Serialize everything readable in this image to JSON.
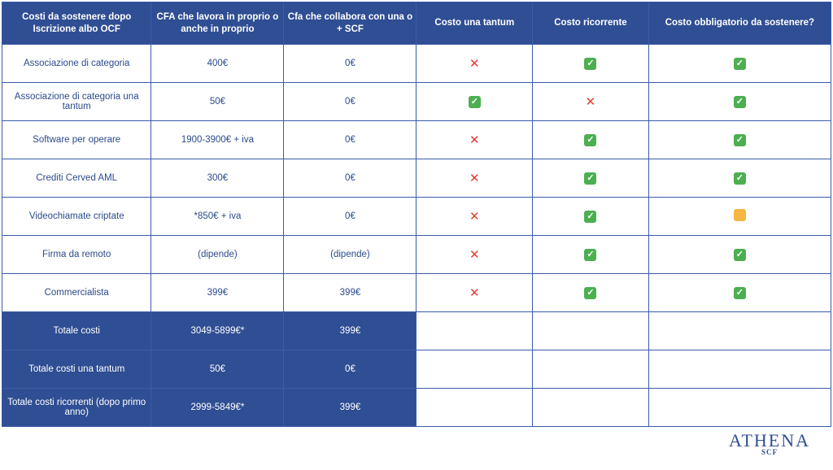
{
  "headers": [
    "Costi da sostenere dopo Iscrizione albo OCF",
    "CFA che lavora in proprio o anche in proprio",
    "Cfa che collabora con una o + SCF",
    "Costo una tantum",
    "Costo ricorrente",
    "Costo obbligatorio da sostenere?"
  ],
  "rows": [
    {
      "label": "Associazione di categoria",
      "own": "400€",
      "scf": "0€",
      "una": "cross",
      "rec": "check",
      "obl": "check"
    },
    {
      "label": "Associazione di categoria una tantum",
      "own": "50€",
      "scf": "0€",
      "una": "check",
      "rec": "cross",
      "obl": "check"
    },
    {
      "label": "Software per operare",
      "own": "1900-3900€ + iva",
      "scf": "0€",
      "una": "cross",
      "rec": "check",
      "obl": "check"
    },
    {
      "label": "Crediti Cerved AML",
      "own": "300€",
      "scf": "0€",
      "una": "cross",
      "rec": "check",
      "obl": "check"
    },
    {
      "label": "Videochiamate criptate",
      "own": "*850€ + iva",
      "scf": "0€",
      "una": "cross",
      "rec": "check",
      "obl": "maybe"
    },
    {
      "label": "Firma da remoto",
      "own": "(dipende)",
      "scf": "(dipende)",
      "una": "cross",
      "rec": "check",
      "obl": "check"
    },
    {
      "label": "Commercialista",
      "own": "399€",
      "scf": "399€",
      "una": "cross",
      "rec": "check",
      "obl": "check"
    }
  ],
  "summary": [
    {
      "label": "Totale costi",
      "own": "3049-5899€*",
      "scf": "399€"
    },
    {
      "label": "Totale costi una tantum",
      "own": "50€",
      "scf": "0€"
    },
    {
      "label": "Totale costi ricorrenti (dopo primo anno)",
      "own": "2999-5849€*",
      "scf": "399€"
    }
  ],
  "marks": {
    "check": "✓",
    "cross": "✕",
    "maybe": " "
  },
  "logo": {
    "main": "ATHENA",
    "sub": "SCF"
  }
}
